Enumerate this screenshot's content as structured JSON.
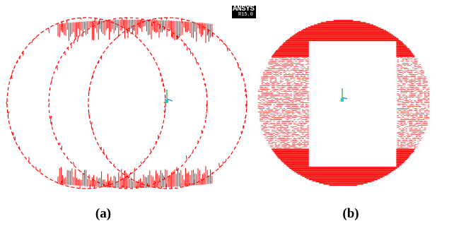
{
  "badge": {
    "brand": "ANSYS",
    "version": "R15.0"
  },
  "captions": {
    "a": "(a)",
    "b": "(b)"
  },
  "colors": {
    "deformation": "#ff0000",
    "triad_x": "#1e88e5",
    "triad_y": "#43a047",
    "triad_z": "#fdd835",
    "background": "#ffffff"
  },
  "panels": [
    {
      "id": "a",
      "view": "three-overlapping-ring-outlines"
    },
    {
      "id": "b",
      "view": "filled-ring-with-dense-bands"
    }
  ]
}
